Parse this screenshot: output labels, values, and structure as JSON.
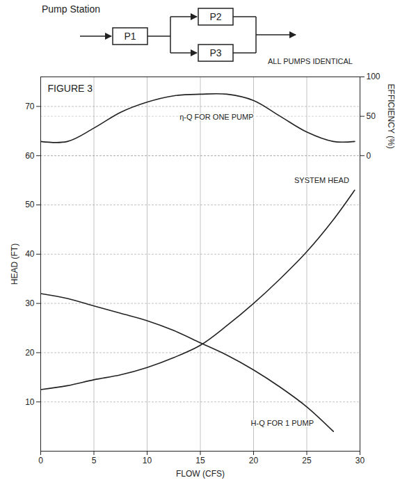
{
  "chart_data": {
    "type": "line",
    "title": "FIGURE 3",
    "x": [
      0,
      2.5,
      5,
      7.5,
      10,
      12.5,
      15,
      17.5,
      20,
      22.5,
      25,
      27.5,
      29.5
    ],
    "series": [
      {
        "name": "SYSTEM HEAD",
        "color": "#222222",
        "values": [
          12.5,
          13.3,
          14.5,
          15.5,
          17,
          19,
          21.5,
          25.5,
          30,
          35,
          40.5,
          47,
          53
        ]
      },
      {
        "name": "H-Q FOR 1 PUMP",
        "color": "#222222",
        "values": [
          32,
          31,
          29.5,
          28,
          26.5,
          24.5,
          22,
          19.5,
          16.5,
          13,
          9,
          4,
          null
        ]
      },
      {
        "name": "η-Q FOR ONE PUMP",
        "color": "#222222",
        "axis": "y2",
        "values": [
          18,
          18,
          35,
          55,
          68,
          76,
          78,
          78,
          70,
          50,
          30,
          18,
          18
        ]
      }
    ],
    "x_label": "FLOW (CFS)",
    "y_label": "HEAD (FT)",
    "y2_label": "EFFICIENCY (%)",
    "xlim": [
      0,
      30
    ],
    "xticks": [
      0,
      5,
      10,
      15,
      20,
      25,
      30
    ],
    "ylim": [
      0,
      76
    ],
    "yticks": [
      10,
      20,
      30,
      40,
      50,
      60,
      70
    ],
    "y2lim": [
      -375,
      100
    ],
    "y2ticks": [
      0,
      50,
      100
    ],
    "grid": true
  },
  "diagram": {
    "title": "Pump Station",
    "pumps": [
      "P1",
      "P2",
      "P3"
    ],
    "note": "ALL PUMPS IDENTICAL"
  }
}
